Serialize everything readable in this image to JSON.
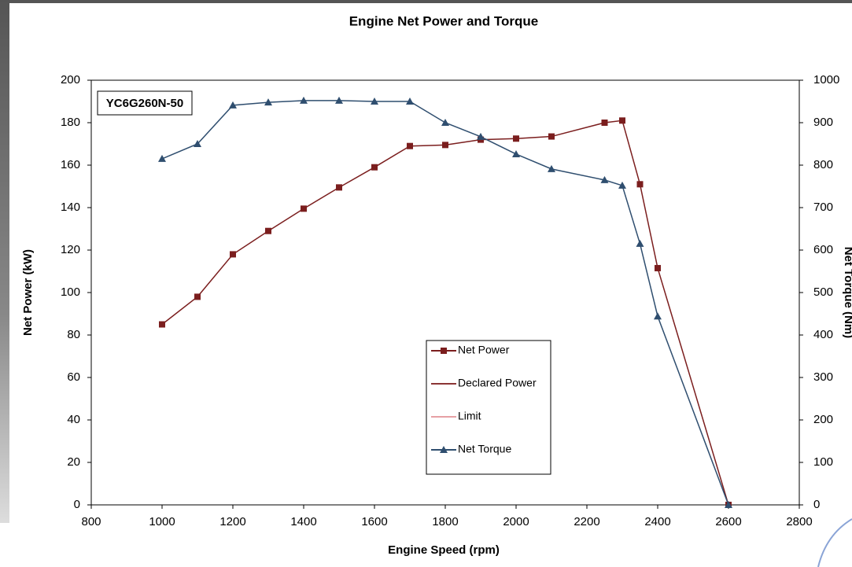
{
  "chart_data": {
    "type": "line",
    "title": "Engine Net Power and Torque",
    "x_label": "Engine Speed (rpm)",
    "y_label": "Net Power (kW)",
    "y2_label": "Net Torque (Nm)",
    "annotation": "YC6G260N-50",
    "x": [
      1000,
      1100,
      1200,
      1300,
      1400,
      1500,
      1600,
      1700,
      1800,
      1900,
      2000,
      2100,
      2250,
      2300,
      2350,
      2400,
      2600
    ],
    "series": [
      {
        "name": "Net Power",
        "color": "#7b1e1e",
        "marker": "square",
        "values": [
          85,
          98,
          118,
          129,
          139.5,
          149.5,
          159,
          169,
          169.5,
          172,
          172.5,
          173.5,
          180,
          181,
          151,
          111.5,
          0
        ]
      },
      {
        "name": "Declared Power",
        "color": "#8b3535",
        "marker": "none",
        "values": [
          null,
          null,
          null,
          null,
          null,
          null,
          null,
          null,
          null,
          null,
          null,
          null,
          null,
          null,
          null,
          null,
          null
        ]
      },
      {
        "name": "Limit",
        "color": "#e6a0a4",
        "marker": "none",
        "values": [
          null,
          null,
          null,
          null,
          null,
          null,
          null,
          null,
          null,
          null,
          null,
          null,
          null,
          null,
          null,
          null,
          null
        ]
      },
      {
        "name": "Net Torque",
        "color": "#2f4e6f",
        "marker": "triangle",
        "axis": "y2",
        "values": [
          815,
          850,
          941,
          948,
          952,
          952,
          950,
          950,
          900,
          867,
          826,
          791,
          765,
          752,
          615,
          444,
          0
        ]
      }
    ],
    "xlim": [
      800,
      2800
    ],
    "xticks": [
      800,
      1000,
      1200,
      1400,
      1600,
      1800,
      2000,
      2200,
      2400,
      2600,
      2800
    ],
    "ylim": [
      0,
      200
    ],
    "yticks": [
      0,
      20,
      40,
      60,
      80,
      100,
      120,
      140,
      160,
      180,
      200
    ],
    "y2lim": [
      0,
      1000
    ],
    "y2ticks": [
      0,
      100,
      200,
      300,
      400,
      500,
      600,
      700,
      800,
      900,
      1000
    ]
  }
}
